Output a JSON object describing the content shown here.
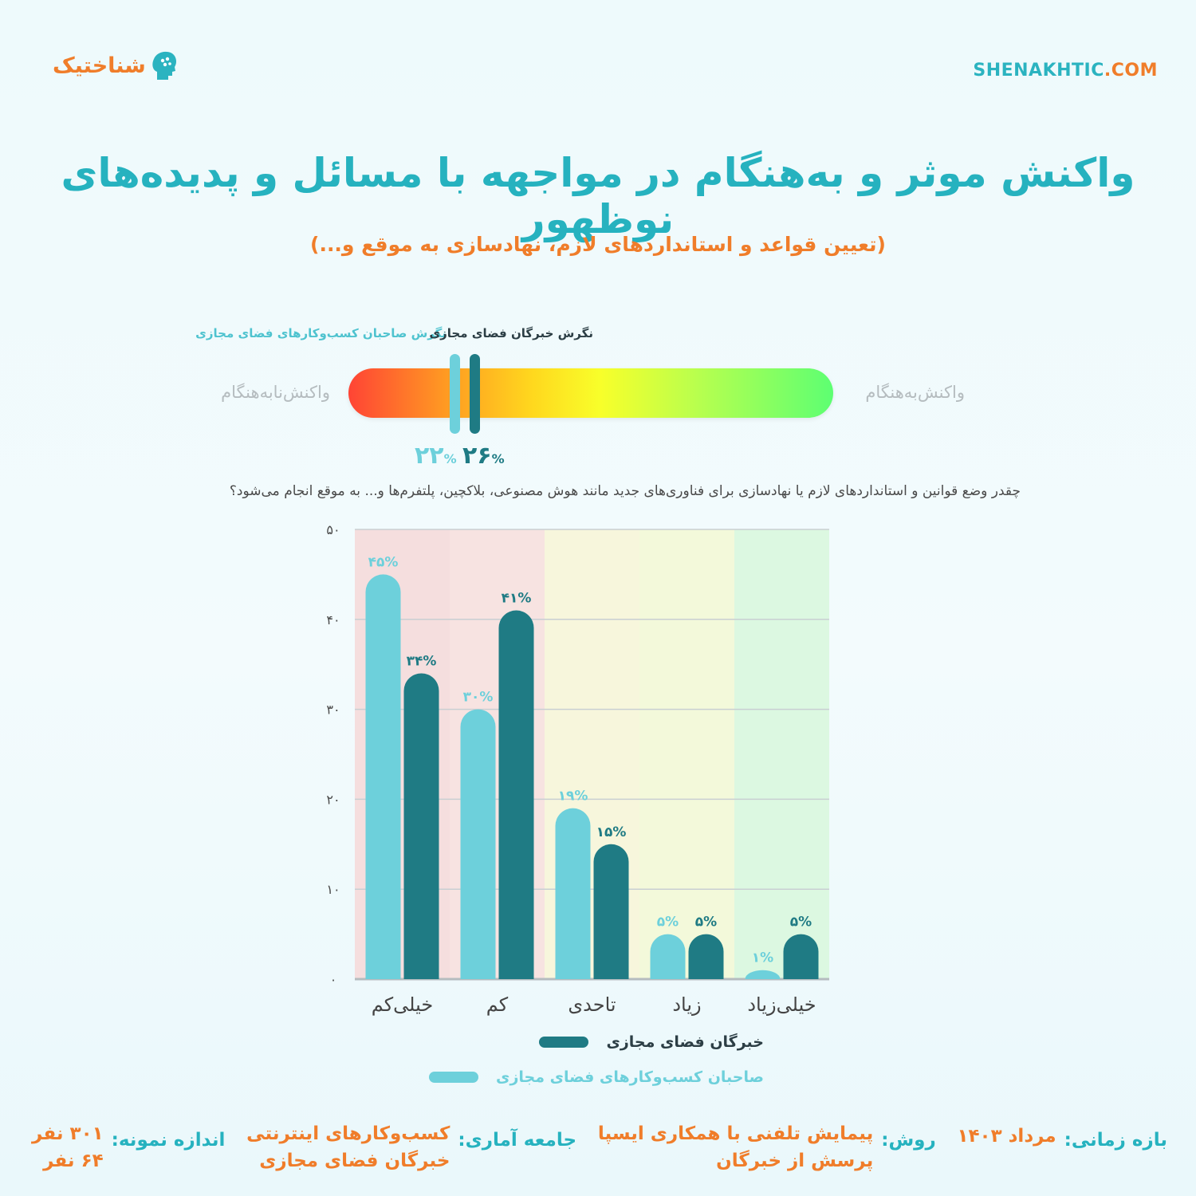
{
  "header": {
    "brand": "شناختیک",
    "site_main": "SHENAKHTIC",
    "site_tld": ".COM"
  },
  "title": "واکنش موثر و به‌هنگام در مواجهه با مسائل و پدیده‌های نوظهور",
  "subtitle": "(تعیین قواعد و استانداردهای لازم، نهادسازی به موقع و...)",
  "gauge": {
    "left_label": "واکنش‌نابه‌هنگام",
    "right_label": "واکنش‌به‌هنگام",
    "markers": [
      {
        "label": "نگرش صاحبان کسب‌وکارهای فضای مجازی",
        "value_text": "۲۲",
        "value": 22,
        "color": "#6dd0db"
      },
      {
        "label": "نگرش خبرگان فضای مجازی",
        "value_text": "۲۶",
        "value": 26,
        "color": "#1f7b84"
      }
    ],
    "percent_sign": "%"
  },
  "question": "چقدر وضع قوانین و استانداردهای لازم یا نهادسازی برای فناوری‌های جدید مانند هوش مصنوعی، بلاکچین، پلتفرم‌ها و... به موقع انجام می‌شود؟",
  "chart_data": {
    "type": "bar",
    "categories": [
      "خیلی‌کم",
      "کم",
      "تاحدی",
      "زیاد",
      "خیلی‌زیاد"
    ],
    "series": [
      {
        "name": "صاحبان کسب‌وکارهای فضای مجازی",
        "values": [
          45,
          30,
          19,
          5,
          1
        ],
        "labels": [
          "۴۵%",
          "۳۰%",
          "۱۹%",
          "۵%",
          "۱%"
        ],
        "color": "#6dd0db"
      },
      {
        "name": "خبرگان فضای مجازی",
        "values": [
          34,
          41,
          15,
          5,
          5
        ],
        "labels": [
          "۳۴%",
          "۴۱%",
          "۱۵%",
          "۵%",
          "۵%"
        ],
        "color": "#1f7b84"
      }
    ],
    "yticks": [
      "۰",
      "۱۰",
      "۲۰",
      "۳۰",
      "۴۰",
      "۵۰"
    ],
    "ylim": [
      0,
      50
    ],
    "grid": true,
    "band_colors": [
      "#f5dede",
      "#f7e3e1",
      "#f7f6dc",
      "#f3f9da",
      "#dcf8e1"
    ]
  },
  "legend": [
    {
      "label": "خبرگان فضای مجازی",
      "color": "#1f7b84"
    },
    {
      "label": "صاحبان کسب‌وکارهای فضای مجازی",
      "color": "#6dd0db"
    }
  ],
  "footer": {
    "period_key": "بازه زمانی:",
    "period_val": "مرداد ۱۴۰۳",
    "method_key": "روش:",
    "method_val_1": "پیمایش تلفنی با همکاری ایسپا",
    "method_val_2": "پرسش از خبرگان",
    "pop_key": "جامعه آماری:",
    "pop_val_1": "کسب‌وکارهای اینترنتی",
    "pop_val_2": "خبرگان فضای مجازی",
    "size_key": "اندازه نمونه:",
    "size_val_1": "۳۰۱ نفر",
    "size_val_2": "۶۴ نفر"
  }
}
